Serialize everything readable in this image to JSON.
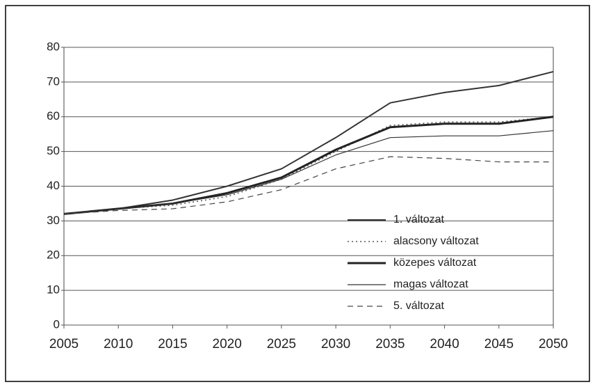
{
  "chart_data": {
    "type": "line",
    "x": [
      2005,
      2010,
      2015,
      2020,
      2025,
      2030,
      2035,
      2040,
      2045,
      2050
    ],
    "series": [
      {
        "name": "1. változat",
        "color": "#333333",
        "style": "solid",
        "width": 2,
        "values": [
          32,
          33.5,
          36,
          40,
          45,
          54,
          64,
          67,
          69,
          73
        ]
      },
      {
        "name": "alacsony változat",
        "color": "#555555",
        "style": "dotted",
        "width": 1.5,
        "values": [
          32,
          33.5,
          34.5,
          37,
          42,
          50,
          57.5,
          58.5,
          58.5,
          60
        ]
      },
      {
        "name": "közepes változat",
        "color": "#222222",
        "style": "solid",
        "width": 3,
        "values": [
          32,
          33.5,
          35,
          38,
          42.5,
          50.5,
          57,
          58,
          58,
          60
        ]
      },
      {
        "name": "magas változat",
        "color": "#333333",
        "style": "solid",
        "width": 1.2,
        "values": [
          32,
          33.5,
          35,
          37.5,
          42,
          49,
          54,
          54.5,
          54.5,
          56
        ]
      },
      {
        "name": "5. változat",
        "color": "#444444",
        "style": "dashed",
        "width": 1.2,
        "values": [
          32,
          33,
          33.5,
          35.5,
          39,
          45,
          48.5,
          48,
          47,
          47
        ]
      }
    ],
    "xlim": [
      2005,
      2050
    ],
    "xticks": [
      2005,
      2010,
      2015,
      2020,
      2025,
      2030,
      2035,
      2040,
      2045,
      2050
    ],
    "ylim": [
      0,
      80
    ],
    "yticks": [
      0,
      10,
      20,
      30,
      40,
      50,
      60,
      70,
      80
    ],
    "grid": true
  }
}
